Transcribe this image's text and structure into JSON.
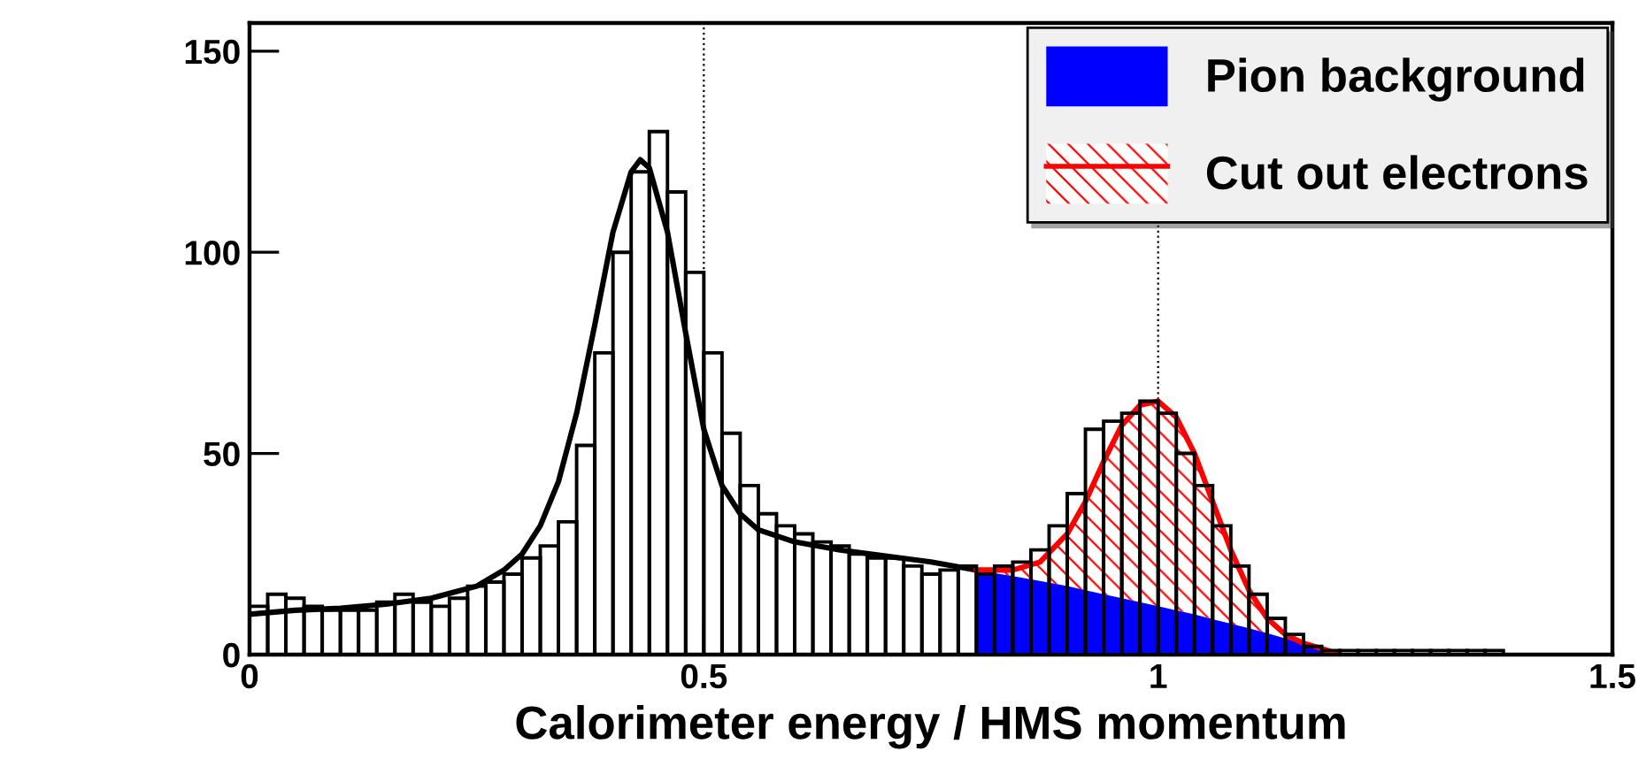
{
  "chart_data": {
    "type": "histogram",
    "xlabel": "Calorimeter energy / HMS momentum",
    "color": "#000000",
    "bins": [
      0,
      0.02,
      0.04,
      0.06,
      0.08,
      0.1,
      0.12,
      0.14,
      0.16,
      0.18,
      0.2,
      0.22,
      0.24,
      0.26,
      0.28,
      0.3,
      0.32,
      0.34,
      0.36,
      0.38,
      0.4,
      0.42,
      0.44,
      0.46,
      0.48,
      0.5,
      0.52,
      0.54,
      0.56,
      0.58,
      0.6,
      0.62,
      0.64,
      0.66,
      0.68,
      0.7,
      0.72,
      0.74,
      0.76,
      0.78,
      0.8,
      0.82,
      0.84,
      0.86,
      0.88,
      0.9,
      0.92,
      0.94,
      0.96,
      0.98,
      1.0,
      1.02,
      1.04,
      1.06,
      1.08,
      1.1,
      1.12,
      1.14,
      1.16,
      1.18,
      1.2,
      1.22,
      1.24,
      1.26,
      1.28,
      1.3,
      1.32,
      1.34,
      1.36,
      1.38,
      1.4,
      1.42,
      1.44,
      1.46,
      1.48,
      1.5
    ],
    "values": [
      12,
      15,
      14,
      12,
      11,
      11,
      11,
      13,
      15,
      13,
      12,
      14,
      17,
      18,
      20,
      24,
      27,
      33,
      52,
      75,
      100,
      120,
      130,
      115,
      95,
      75,
      55,
      42,
      35,
      32,
      30,
      28,
      27,
      25,
      24,
      24,
      22,
      20,
      21,
      22,
      20,
      22,
      23,
      26,
      32,
      40,
      56,
      58,
      60,
      63,
      60,
      50,
      42,
      32,
      22,
      15,
      9,
      5,
      2,
      1,
      1,
      1,
      1,
      1,
      1,
      1,
      1,
      1,
      1,
      0,
      0,
      0,
      0,
      0,
      0
    ],
    "series": [
      {
        "type": "line",
        "color": "#000000",
        "x": [
          0,
          0.05,
          0.1,
          0.15,
          0.2,
          0.25,
          0.28,
          0.3,
          0.32,
          0.34,
          0.36,
          0.38,
          0.4,
          0.42,
          0.43,
          0.44,
          0.46,
          0.48,
          0.5,
          0.52,
          0.54,
          0.56,
          0.6,
          0.65,
          0.7,
          0.75,
          0.8
        ],
        "values": [
          10,
          11,
          11.5,
          12.5,
          14,
          17,
          21,
          25,
          32,
          43,
          60,
          82,
          105,
          120,
          123,
          121,
          105,
          80,
          56,
          42,
          35,
          31,
          28,
          26,
          24.5,
          23,
          21
        ]
      },
      {
        "type": "area",
        "name": "Pion background",
        "color": "#0000ff",
        "x": [
          0.8,
          0.84,
          0.87,
          0.9,
          0.92,
          0.94,
          0.96,
          0.98,
          1.0,
          1.02,
          1.04,
          1.06,
          1.08,
          1.1,
          1.12,
          1.14,
          1.16,
          1.18,
          1.2
        ],
        "values": [
          21,
          19.5,
          18.3,
          17,
          16,
          15,
          14,
          13,
          12,
          11,
          10,
          8.8,
          7.7,
          6.5,
          5.3,
          4,
          2.7,
          1.4,
          0
        ]
      },
      {
        "type": "line",
        "name": "Cut out electrons",
        "color": "#ff0000",
        "x": [
          0.8,
          0.84,
          0.87,
          0.9,
          0.92,
          0.94,
          0.96,
          0.98,
          1.0,
          1.02,
          1.04,
          1.06,
          1.08,
          1.1,
          1.12,
          1.14,
          1.16,
          1.18,
          1.2
        ],
        "values": [
          21,
          21,
          23,
          30,
          38,
          48,
          57,
          62,
          63,
          59,
          50,
          38,
          26,
          16,
          9,
          5,
          2.8,
          1.5,
          0
        ],
        "lower": [
          21,
          19.5,
          18.3,
          17,
          16,
          15,
          14,
          13,
          12,
          11,
          10,
          8.8,
          7.7,
          6.5,
          5.3,
          4,
          2.7,
          1.4,
          0
        ],
        "upper": [
          21,
          21,
          23,
          30,
          38,
          48,
          57,
          62,
          63,
          59,
          50,
          38,
          26,
          16,
          9,
          5,
          2.8,
          1.5,
          0
        ]
      }
    ],
    "ref_lines": [
      {
        "axis": "x",
        "value": 0.5,
        "line_style": "dotted"
      },
      {
        "axis": "x",
        "value": 1.0,
        "line_style": "dotted"
      }
    ],
    "xlim": [
      0,
      1.5
    ],
    "ylim": [
      0,
      157
    ],
    "xticks": [
      0,
      0.5,
      1,
      1.5
    ],
    "yticks": [
      0,
      50,
      100,
      150
    ],
    "grid": false,
    "legend": "top right"
  }
}
